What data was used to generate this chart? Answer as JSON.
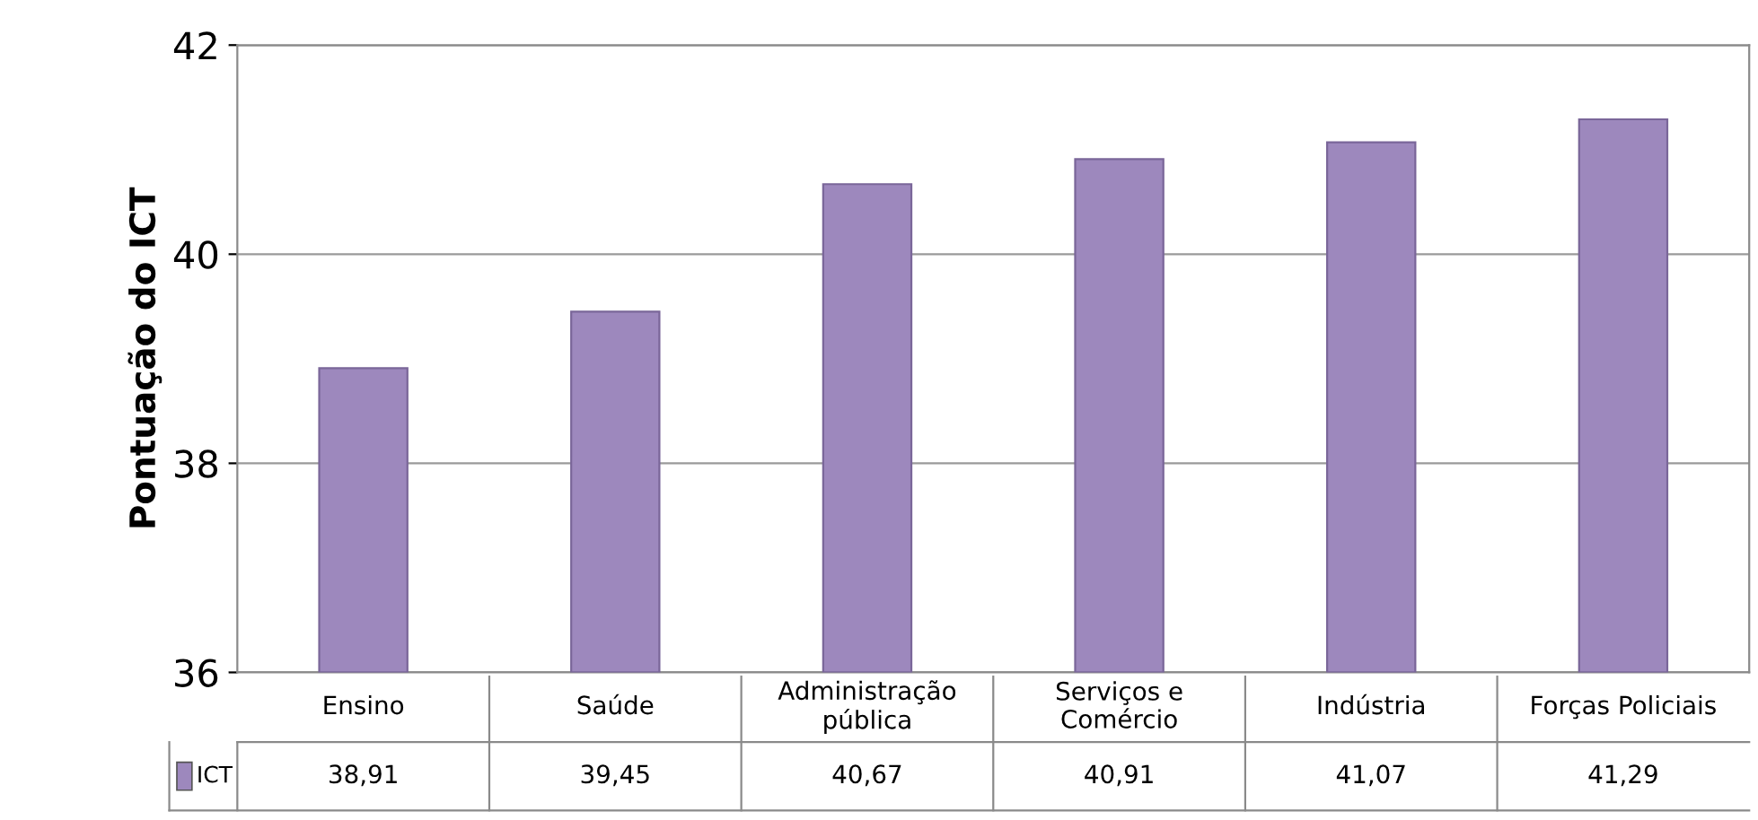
{
  "chart_data": {
    "type": "bar",
    "ylabel": "Pontuação do ICT",
    "categories": [
      "Ensino",
      "Saúde",
      "Administração\npública",
      "Serviços e\nComércio",
      "Indústria",
      "Forças Policiais"
    ],
    "series": [
      {
        "name": "ICT",
        "color": "#9d88bd",
        "values": [
          38.91,
          39.45,
          40.67,
          40.91,
          41.07,
          41.29
        ],
        "value_labels": [
          "38,91",
          "39,45",
          "40,67",
          "40,91",
          "41,07",
          "41,29"
        ]
      }
    ],
    "ylim": [
      36,
      42
    ],
    "yticks": [
      36,
      38,
      40,
      42
    ],
    "grid": "y"
  }
}
